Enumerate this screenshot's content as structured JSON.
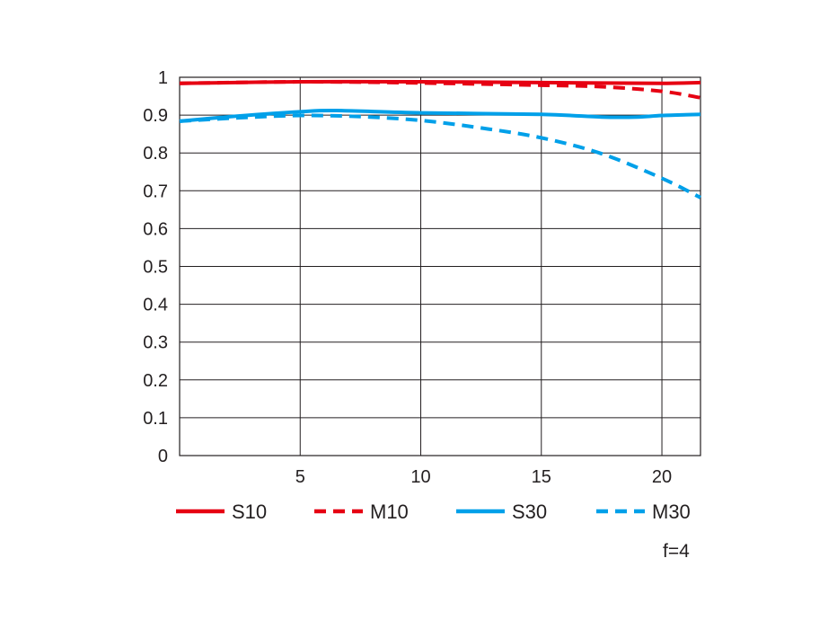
{
  "chart_data": {
    "type": "line",
    "xlim": [
      0,
      21.6
    ],
    "ylim": [
      0,
      1
    ],
    "x_ticks": [
      "5",
      "10",
      "15",
      "20"
    ],
    "y_ticks": [
      "0",
      "0.1",
      "0.2",
      "0.3",
      "0.4",
      "0.5",
      "0.6",
      "0.7",
      "0.8",
      "0.9",
      "1"
    ],
    "grid": true,
    "legend_position": "bottom",
    "series": [
      {
        "name": "S10",
        "color": "#e60012",
        "dashed": false,
        "x": [
          0,
          5,
          10,
          15,
          17.5,
          20,
          21.6
        ],
        "y": [
          0.984,
          0.988,
          0.988,
          0.986,
          0.985,
          0.984,
          0.986
        ]
      },
      {
        "name": "M10",
        "color": "#e60012",
        "dashed": true,
        "x": [
          0,
          5,
          10,
          15,
          17.5,
          20,
          21.6
        ],
        "y": [
          0.984,
          0.988,
          0.985,
          0.979,
          0.975,
          0.963,
          0.946
        ]
      },
      {
        "name": "S30",
        "color": "#00a0e9",
        "dashed": false,
        "x": [
          0,
          2.5,
          5,
          6.5,
          10,
          15,
          17.5,
          19,
          20,
          21.6
        ],
        "y": [
          0.884,
          0.898,
          0.909,
          0.912,
          0.906,
          0.902,
          0.895,
          0.895,
          0.899,
          0.902
        ]
      },
      {
        "name": "M30",
        "color": "#00a0e9",
        "dashed": true,
        "x": [
          0,
          2.5,
          5,
          7.5,
          10,
          12.5,
          15,
          17.5,
          20,
          21.6
        ],
        "y": [
          0.884,
          0.893,
          0.899,
          0.896,
          0.886,
          0.866,
          0.84,
          0.798,
          0.733,
          0.682
        ]
      }
    ]
  },
  "note": "f=4"
}
